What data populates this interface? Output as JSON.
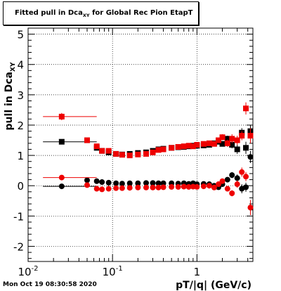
{
  "title": {
    "prefix": "Fitted pull in Dca",
    "subscript": "XY",
    "suffix": " for Global Rec Pion EtapT"
  },
  "footer": {
    "timestamp": "Mon Oct 19 08:30:58 2020"
  },
  "chart_data": {
    "type": "scatter",
    "title": "Fitted pull in Dca_XY for Global Rec Pion EtapT",
    "xlabel": "pT/|q| (GeV/c)",
    "ylabel": "pull in Dca_XY",
    "x_scale": "log",
    "xlim": [
      0.01,
      4.6
    ],
    "ylim": [
      -2.5,
      5.2
    ],
    "x_tick_labels": [
      {
        "value": 0.01,
        "label": "10",
        "exponent": "-2"
      },
      {
        "value": 0.1,
        "label": "10",
        "exponent": "-1"
      },
      {
        "value": 1,
        "label": "1",
        "exponent": ""
      }
    ],
    "y_ticks": [
      -2,
      -1,
      0,
      1,
      2,
      3,
      4,
      5
    ],
    "grid": true,
    "colors": {
      "black": "#000000",
      "red": "#ee0000"
    },
    "series": [
      {
        "color": "#000000",
        "marker": "square",
        "x": [
          0.025,
          0.05,
          0.065,
          0.075,
          0.09,
          0.11,
          0.13,
          0.16,
          0.2,
          0.25,
          0.3,
          0.35,
          0.4,
          0.5,
          0.6,
          0.7,
          0.8,
          0.9,
          1.0,
          1.2,
          1.4,
          1.6,
          1.8,
          2.0,
          2.3,
          2.6,
          3.0,
          3.4,
          3.8,
          4.3
        ],
        "y": [
          1.45,
          1.5,
          1.25,
          1.15,
          1.1,
          1.05,
          1.03,
          1.05,
          1.08,
          1.1,
          1.15,
          1.2,
          1.22,
          1.25,
          1.27,
          1.28,
          1.3,
          1.32,
          1.32,
          1.33,
          1.35,
          1.4,
          1.45,
          1.38,
          1.55,
          1.35,
          1.2,
          1.75,
          1.25,
          1.8
        ],
        "xerr": [
          [
            0.01,
            0.04
          ],
          null,
          null,
          null,
          null,
          null,
          null,
          null,
          null,
          null,
          null,
          null,
          null,
          null,
          null,
          null,
          null,
          null,
          null,
          null,
          null,
          null,
          null,
          null,
          null,
          null,
          null,
          null,
          null,
          null
        ],
        "yerr": [
          0.05,
          0.05,
          0.05,
          0.05,
          0.05,
          0.05,
          0.05,
          0.05,
          0.05,
          0.05,
          0.05,
          0.05,
          0.05,
          0.05,
          0.05,
          0.05,
          0.05,
          0.05,
          0.05,
          0.05,
          0.05,
          0.05,
          0.05,
          0.08,
          0.1,
          0.12,
          0.15,
          0.15,
          0.2,
          0.2
        ]
      },
      {
        "color": "#ee0000",
        "marker": "square",
        "x": [
          0.025,
          0.05,
          0.065,
          0.075,
          0.09,
          0.11,
          0.13,
          0.16,
          0.2,
          0.25,
          0.3,
          0.35,
          0.4,
          0.5,
          0.6,
          0.7,
          0.8,
          0.9,
          1.0,
          1.2,
          1.4,
          1.6,
          1.8,
          2.0,
          2.3,
          2.6,
          3.0,
          3.4,
          3.8,
          4.3
        ],
        "y": [
          2.28,
          1.5,
          1.3,
          1.15,
          1.15,
          1.05,
          1.02,
          1.0,
          1.03,
          1.05,
          1.1,
          1.18,
          1.2,
          1.25,
          1.28,
          1.3,
          1.32,
          1.3,
          1.35,
          1.38,
          1.4,
          1.38,
          1.5,
          1.6,
          1.4,
          1.55,
          1.5,
          1.65,
          2.55,
          1.65
        ],
        "xerr": [
          [
            0.01,
            0.04
          ],
          null,
          null,
          null,
          null,
          null,
          null,
          null,
          null,
          null,
          null,
          null,
          null,
          null,
          null,
          null,
          null,
          null,
          null,
          null,
          null,
          null,
          null,
          null,
          null,
          null,
          null,
          null,
          null,
          null
        ],
        "yerr": [
          0.12,
          0.06,
          0.05,
          0.05,
          0.05,
          0.05,
          0.05,
          0.05,
          0.05,
          0.05,
          0.05,
          0.05,
          0.05,
          0.05,
          0.05,
          0.05,
          0.05,
          0.05,
          0.05,
          0.05,
          0.05,
          0.05,
          0.06,
          0.1,
          0.12,
          0.15,
          0.15,
          0.15,
          0.2,
          0.25
        ]
      },
      {
        "color": "#000000",
        "marker": "circle",
        "x": [
          0.025,
          0.05,
          0.065,
          0.075,
          0.09,
          0.11,
          0.13,
          0.16,
          0.2,
          0.25,
          0.3,
          0.35,
          0.4,
          0.5,
          0.6,
          0.7,
          0.8,
          0.9,
          1.0,
          1.2,
          1.4,
          1.6,
          1.8,
          2.0,
          2.3,
          2.6,
          3.0,
          3.4,
          3.8,
          4.3
        ],
        "y": [
          -0.02,
          0.18,
          0.15,
          0.12,
          0.1,
          0.08,
          0.07,
          0.08,
          0.08,
          0.09,
          0.09,
          0.08,
          0.08,
          0.08,
          0.07,
          0.08,
          0.06,
          0.08,
          0.05,
          0.06,
          0.05,
          0.0,
          -0.05,
          0.05,
          0.2,
          0.35,
          0.25,
          -0.1,
          -0.05,
          0.95
        ],
        "xerr": [
          [
            0.01,
            0.04
          ],
          null,
          null,
          null,
          null,
          null,
          null,
          null,
          null,
          null,
          null,
          null,
          null,
          null,
          null,
          null,
          null,
          null,
          null,
          null,
          null,
          null,
          null,
          null,
          null,
          null,
          null,
          null,
          null,
          null
        ],
        "yerr": [
          0.04,
          0.04,
          0.03,
          0.03,
          0.03,
          0.03,
          0.03,
          0.03,
          0.03,
          0.03,
          0.03,
          0.03,
          0.03,
          0.03,
          0.03,
          0.03,
          0.03,
          0.03,
          0.03,
          0.03,
          0.04,
          0.04,
          0.05,
          0.06,
          0.08,
          0.1,
          0.12,
          0.15,
          0.15,
          0.2
        ]
      },
      {
        "color": "#ee0000",
        "marker": "circle",
        "x": [
          0.025,
          0.05,
          0.065,
          0.075,
          0.09,
          0.11,
          0.13,
          0.16,
          0.2,
          0.25,
          0.3,
          0.35,
          0.4,
          0.5,
          0.6,
          0.7,
          0.8,
          0.9,
          1.0,
          1.2,
          1.4,
          1.6,
          1.8,
          2.0,
          2.3,
          2.6,
          3.0,
          3.4,
          3.8,
          4.3
        ],
        "y": [
          0.27,
          0.02,
          -0.1,
          -0.12,
          -0.1,
          -0.08,
          -0.08,
          -0.07,
          -0.06,
          -0.06,
          -0.06,
          -0.06,
          -0.05,
          -0.04,
          -0.04,
          -0.03,
          -0.04,
          -0.03,
          -0.04,
          -0.02,
          0.0,
          -0.06,
          0.05,
          0.15,
          -0.1,
          -0.25,
          0.05,
          0.45,
          0.3,
          -0.72
        ],
        "xerr": [
          [
            0.01,
            0.04
          ],
          null,
          null,
          null,
          null,
          null,
          null,
          null,
          null,
          null,
          null,
          null,
          null,
          null,
          null,
          null,
          null,
          null,
          null,
          null,
          null,
          null,
          null,
          null,
          null,
          null,
          null,
          null,
          null,
          null
        ],
        "yerr": [
          0.04,
          0.04,
          0.03,
          0.03,
          0.03,
          0.03,
          0.03,
          0.03,
          0.03,
          0.03,
          0.03,
          0.03,
          0.03,
          0.03,
          0.03,
          0.03,
          0.03,
          0.03,
          0.03,
          0.03,
          0.04,
          0.04,
          0.05,
          0.06,
          0.08,
          0.1,
          0.12,
          0.15,
          0.15,
          0.25
        ]
      }
    ]
  }
}
